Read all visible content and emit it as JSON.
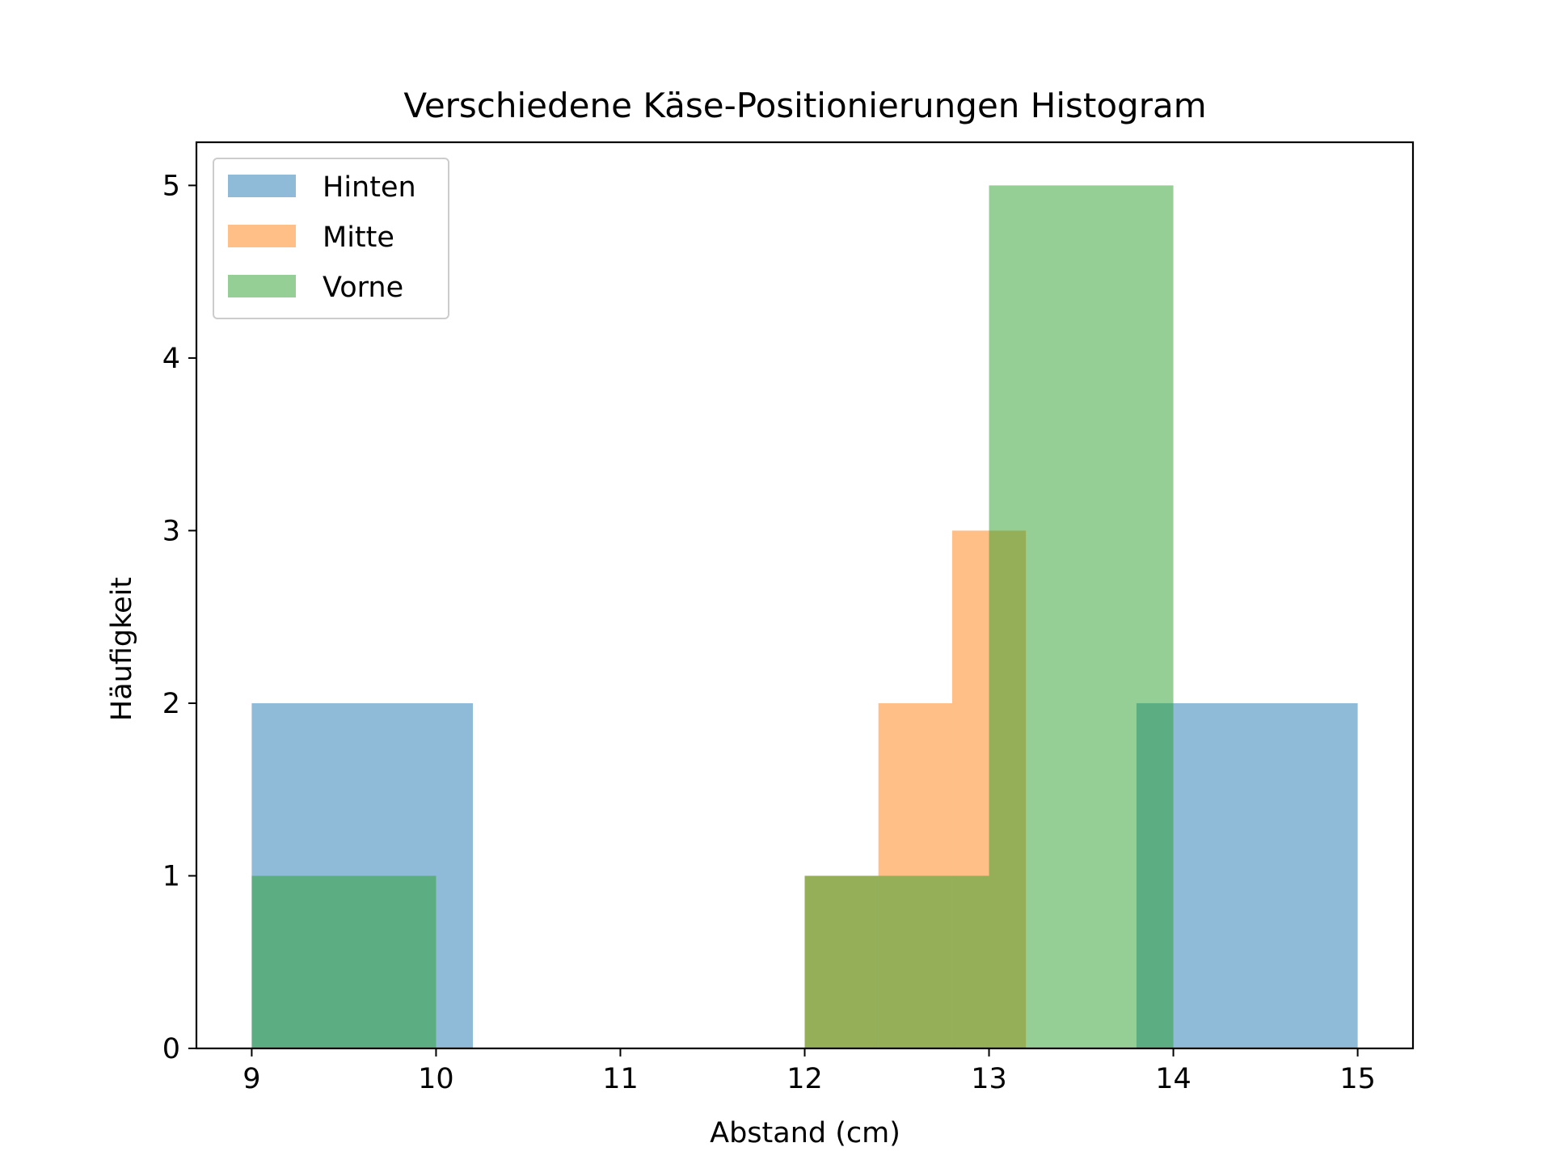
{
  "chart_data": {
    "type": "bar",
    "title": "Verschiedene Käse-Positionierungen Histogram",
    "xlabel": "Abstand (cm)",
    "ylabel": "Häufigkeit",
    "xlim": [
      8.7,
      15.3
    ],
    "ylim": [
      0,
      5.25
    ],
    "xticks": [
      "9",
      "10",
      "11",
      "12",
      "13",
      "14",
      "15"
    ],
    "yticks": [
      "0",
      "1",
      "2",
      "3",
      "4",
      "5"
    ],
    "grid": false,
    "legend_position": "top-left",
    "series": [
      {
        "name": "Hinten",
        "color": "#1f77b4",
        "opacity": 0.5,
        "bins": [
          {
            "x0": 9.0,
            "x1": 10.2,
            "count": 2
          },
          {
            "x0": 13.8,
            "x1": 15.0,
            "count": 2
          }
        ]
      },
      {
        "name": "Mitte",
        "color": "#ff7f0e",
        "opacity": 0.5,
        "bins": [
          {
            "x0": 12.0,
            "x1": 12.4,
            "count": 1
          },
          {
            "x0": 12.4,
            "x1": 12.8,
            "count": 2
          },
          {
            "x0": 12.8,
            "x1": 13.2,
            "count": 3
          }
        ]
      },
      {
        "name": "Vorne",
        "color": "#2ca02c",
        "opacity": 0.5,
        "bins": [
          {
            "x0": 9.0,
            "x1": 10.0,
            "count": 1
          },
          {
            "x0": 12.0,
            "x1": 13.0,
            "count": 1
          },
          {
            "x0": 13.0,
            "x1": 14.0,
            "count": 5
          }
        ]
      }
    ]
  }
}
